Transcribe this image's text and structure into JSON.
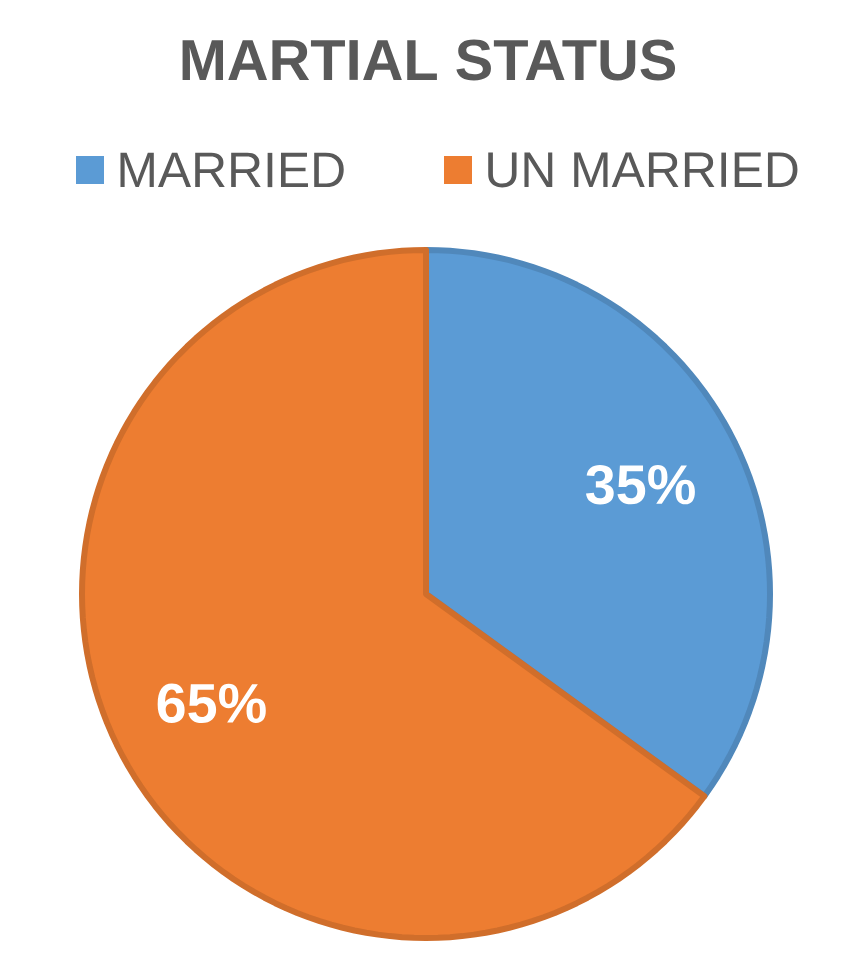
{
  "chart_data": {
    "type": "pie",
    "title": "MARTIAL STATUS",
    "categories": [
      "MARRIED",
      "UN MARRIED"
    ],
    "values": [
      35,
      65
    ],
    "colors": [
      "#5b9bd5",
      "#ed7d31"
    ],
    "value_labels": [
      "35%",
      "65%"
    ],
    "legend": "top"
  }
}
